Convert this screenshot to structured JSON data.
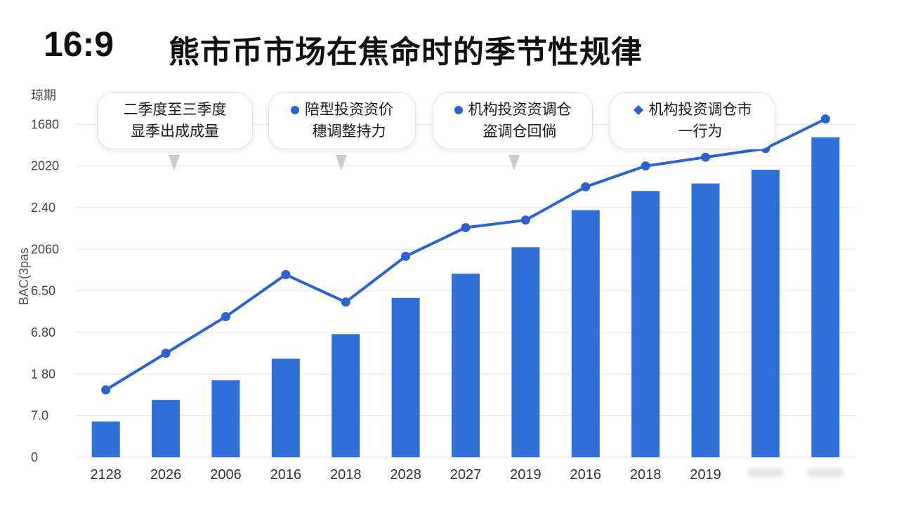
{
  "header": {
    "ratio": "16:9",
    "title": "熊市币市场在焦命时的季节性规律"
  },
  "colors": {
    "bar": "#2f6fd8",
    "line": "#2a63cf",
    "grid": "#e6e6e6",
    "pointer": "#c9ced6"
  },
  "callouts": [
    {
      "lines": [
        "二季度至三季度",
        "显季出成成量"
      ],
      "marker": "none"
    },
    {
      "lines": [
        "陪型投资资价",
        "穗调整持力"
      ],
      "marker": "dot"
    },
    {
      "lines": [
        "机构投资资调仓",
        "盗调仓回倘"
      ],
      "marker": "dot"
    },
    {
      "lines": [
        "机构投资调仓市",
        "一行为"
      ],
      "marker": "diamond"
    }
  ],
  "chart_data": {
    "type": "bar",
    "y_axis_title": "BAC(3pas",
    "y_unit_label": "琼期",
    "y_tick_labels": [
      "0",
      "7.0",
      "1 80",
      "6.80",
      "6.50",
      "2060",
      "2.40",
      "2020",
      "1680"
    ],
    "categories": [
      "2128",
      "2026",
      "2006",
      "2016",
      "2018",
      "2028",
      "2027",
      "2019",
      "2016",
      "2018",
      "2019",
      "",
      ""
    ],
    "blurred_category_indices": [
      11,
      12
    ],
    "ylim": [
      0,
      9
    ],
    "series": [
      {
        "type": "bar",
        "values": [
          0.86,
          1.38,
          1.85,
          2.37,
          2.96,
          3.83,
          4.41,
          5.05,
          5.94,
          6.4,
          6.58,
          6.91,
          7.69
        ]
      },
      {
        "type": "line",
        "values": [
          1.62,
          2.5,
          3.38,
          4.39,
          3.73,
          4.83,
          5.52,
          5.7,
          6.5,
          7.0,
          7.21,
          7.42,
          8.13
        ]
      }
    ],
    "grid": true,
    "legend": "none"
  }
}
